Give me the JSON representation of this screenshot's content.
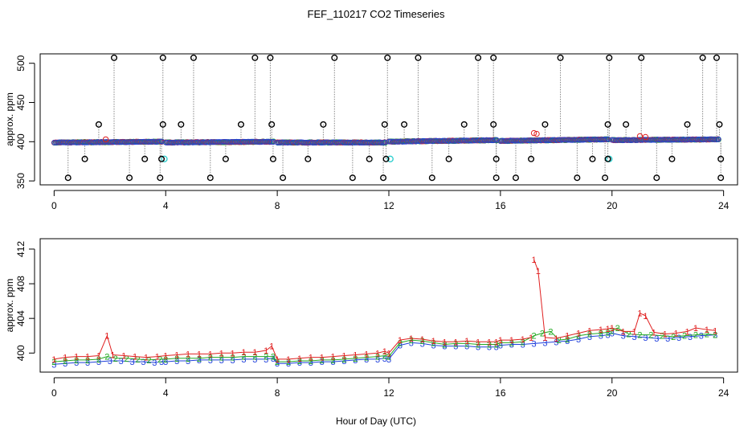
{
  "chart_data": [
    {
      "type": "scatter",
      "title": "FEF_110217  CO2 Timeseries",
      "ylabel": "approx. ppm",
      "xlabel": "",
      "xlim": [
        -0.5,
        24.5
      ],
      "ylim": [
        345,
        512
      ],
      "x_ticks": [
        0,
        4,
        8,
        12,
        16,
        20,
        24
      ],
      "y_ticks": [
        350,
        400,
        450,
        500
      ],
      "grid": false,
      "colors": {
        "ch1": "#e02020",
        "ch2": "#22aa22",
        "ch3": "#1f3fdc",
        "ref": "#30d0d0",
        "spike": "#000000",
        "connector": "#888888"
      },
      "spikes_high": [
        2.15,
        3.9,
        5.0,
        7.2,
        7.75,
        10.05,
        11.95,
        13.05,
        15.2,
        15.75,
        18.15,
        19.9,
        21.05,
        23.25,
        23.75
      ],
      "spikes_low": [
        0.5,
        2.7,
        3.8,
        5.6,
        8.2,
        10.7,
        11.8,
        13.55,
        15.85,
        16.55,
        18.75,
        19.75,
        21.6,
        23.9
      ],
      "spikes_mid_422": [
        1.6,
        3.9,
        4.55,
        6.7,
        7.8,
        9.65,
        11.85,
        12.55,
        14.7,
        15.75,
        17.6,
        19.85,
        20.5,
        22.7,
        23.85
      ],
      "spikes_mid_378": [
        1.1,
        3.25,
        3.85,
        6.15,
        7.85,
        9.1,
        11.3,
        11.9,
        14.15,
        15.85,
        17.1,
        19.3,
        19.85,
        22.15,
        23.9
      ],
      "ref_points": [
        {
          "x": 3.95,
          "y": 378
        },
        {
          "x": 12.05,
          "y": 378
        },
        {
          "x": 19.9,
          "y": 378
        }
      ],
      "main_segments": [
        {
          "x0": 0.0,
          "x1": 3.85,
          "y0": 399,
          "y1": 400
        },
        {
          "x0": 4.0,
          "x1": 7.85,
          "y0": 399,
          "y1": 400
        },
        {
          "x0": 8.0,
          "x1": 11.85,
          "y0": 399,
          "y1": 399
        },
        {
          "x0": 12.0,
          "x1": 15.85,
          "y0": 400,
          "y1": 402
        },
        {
          "x0": 16.0,
          "x1": 19.85,
          "y0": 401,
          "y1": 403
        },
        {
          "x0": 20.0,
          "x1": 23.8,
          "y0": 402,
          "y1": 403
        }
      ],
      "red_outliers": [
        {
          "x": 17.2,
          "y": 411
        },
        {
          "x": 17.3,
          "y": 410
        },
        {
          "x": 21.0,
          "y": 407
        },
        {
          "x": 21.2,
          "y": 406
        },
        {
          "x": 1.85,
          "y": 403
        }
      ]
    },
    {
      "type": "line",
      "title": "",
      "xlabel": "Hour of Day (UTC)",
      "ylabel": "approx. ppm",
      "xlim": [
        -0.5,
        24.5
      ],
      "ylim": [
        397.8,
        413.2
      ],
      "x_ticks": [
        0,
        4,
        8,
        12,
        16,
        20,
        24
      ],
      "y_ticks": [
        400,
        404,
        408,
        412
      ],
      "grid": false,
      "series": [
        {
          "name": "1",
          "color": "#e02020",
          "x": [
            0.0,
            0.4,
            0.8,
            1.2,
            1.6,
            1.9,
            2.1,
            2.5,
            2.9,
            3.3,
            3.7,
            4.0,
            4.4,
            4.8,
            5.2,
            5.6,
            6.0,
            6.4,
            6.8,
            7.2,
            7.6,
            7.8,
            8.0,
            8.4,
            8.8,
            9.2,
            9.6,
            10.0,
            10.4,
            10.8,
            11.2,
            11.6,
            11.85,
            12.0,
            12.4,
            12.8,
            13.2,
            13.6,
            14.0,
            14.4,
            14.8,
            15.2,
            15.6,
            15.85,
            16.0,
            16.4,
            16.8,
            17.1,
            17.2,
            17.35,
            17.6,
            18.0,
            18.4,
            18.8,
            19.2,
            19.6,
            19.85,
            20.0,
            20.4,
            20.8,
            21.0,
            21.2,
            21.5,
            21.9,
            22.3,
            22.7,
            23.0,
            23.4,
            23.7
          ],
          "y": [
            399.3,
            399.5,
            399.6,
            399.6,
            399.7,
            402.0,
            399.8,
            399.7,
            399.6,
            399.5,
            399.6,
            399.7,
            399.8,
            399.9,
            399.9,
            399.9,
            400.0,
            400.0,
            400.1,
            400.1,
            400.3,
            400.8,
            399.3,
            399.3,
            399.4,
            399.5,
            399.5,
            399.6,
            399.7,
            399.8,
            399.9,
            400.0,
            400.2,
            400.0,
            401.5,
            401.7,
            401.6,
            401.4,
            401.3,
            401.3,
            401.4,
            401.3,
            401.3,
            401.3,
            401.5,
            401.5,
            401.6,
            401.8,
            410.8,
            409.5,
            401.8,
            401.7,
            402.0,
            402.3,
            402.6,
            402.7,
            402.8,
            402.9,
            402.5,
            402.5,
            404.6,
            404.3,
            402.4,
            402.2,
            402.3,
            402.5,
            402.9,
            402.7,
            402.6
          ]
        },
        {
          "name": "2",
          "color": "#22aa22",
          "x": [
            0.0,
            0.4,
            0.8,
            1.2,
            1.6,
            1.9,
            2.2,
            2.6,
            3.0,
            3.4,
            3.8,
            4.0,
            4.4,
            4.8,
            5.2,
            5.6,
            6.0,
            6.4,
            6.8,
            7.2,
            7.6,
            7.85,
            8.0,
            8.4,
            8.8,
            9.2,
            9.6,
            10.0,
            10.4,
            10.8,
            11.2,
            11.6,
            11.85,
            12.0,
            12.4,
            12.8,
            13.2,
            13.6,
            14.0,
            14.4,
            14.8,
            15.2,
            15.6,
            15.85,
            16.0,
            16.4,
            16.8,
            17.2,
            17.5,
            17.8,
            18.1,
            18.4,
            18.8,
            19.2,
            19.6,
            19.85,
            20.0,
            20.2,
            20.6,
            21.0,
            21.4,
            21.8,
            22.2,
            22.6,
            23.0,
            23.4,
            23.7
          ],
          "y": [
            399.0,
            399.1,
            399.2,
            399.2,
            399.3,
            399.6,
            399.4,
            399.4,
            399.3,
            399.2,
            399.3,
            399.3,
            399.4,
            399.4,
            399.4,
            399.5,
            399.5,
            399.5,
            399.6,
            399.6,
            399.6,
            399.6,
            399.0,
            399.0,
            399.1,
            399.1,
            399.2,
            399.2,
            399.3,
            399.4,
            399.5,
            399.6,
            399.7,
            399.6,
            401.2,
            401.5,
            401.4,
            401.2,
            401.0,
            401.1,
            401.1,
            401.0,
            401.0,
            401.0,
            401.2,
            401.2,
            401.3,
            402.0,
            402.3,
            402.5,
            401.5,
            401.6,
            402.0,
            402.2,
            402.3,
            402.4,
            402.6,
            402.9,
            402.2,
            402.1,
            402.1,
            402.0,
            401.9,
            402.0,
            402.1,
            402.2,
            402.1
          ]
        },
        {
          "name": "3",
          "color": "#1f3fdc",
          "x": [
            0.0,
            0.4,
            0.8,
            1.2,
            1.6,
            2.0,
            2.4,
            2.8,
            3.2,
            3.6,
            3.85,
            4.0,
            4.4,
            4.8,
            5.2,
            5.6,
            6.0,
            6.4,
            6.8,
            7.2,
            7.6,
            7.85,
            8.0,
            8.4,
            8.8,
            9.2,
            9.6,
            10.0,
            10.4,
            10.8,
            11.2,
            11.6,
            11.85,
            12.0,
            12.4,
            12.8,
            13.2,
            13.6,
            14.0,
            14.4,
            14.8,
            15.2,
            15.6,
            15.85,
            16.0,
            16.4,
            16.8,
            17.2,
            17.6,
            18.0,
            18.4,
            18.8,
            19.2,
            19.6,
            19.85,
            20.0,
            20.4,
            20.8,
            21.2,
            21.6,
            22.0,
            22.4,
            22.8,
            23.2,
            23.7
          ],
          "y": [
            398.7,
            398.8,
            398.9,
            398.9,
            399.0,
            399.1,
            399.1,
            399.0,
            399.0,
            398.9,
            399.0,
            399.0,
            399.1,
            399.1,
            399.2,
            399.2,
            399.2,
            399.2,
            399.3,
            399.3,
            399.3,
            399.4,
            398.8,
            398.8,
            398.9,
            398.9,
            399.0,
            399.0,
            399.1,
            399.2,
            399.3,
            399.3,
            399.4,
            399.3,
            400.9,
            401.2,
            401.1,
            400.9,
            400.8,
            400.8,
            400.8,
            400.7,
            400.7,
            400.7,
            400.9,
            401.0,
            401.0,
            401.1,
            401.2,
            401.3,
            401.4,
            401.6,
            401.9,
            402.0,
            402.1,
            402.3,
            402.0,
            401.9,
            401.8,
            401.7,
            401.7,
            401.8,
            401.9,
            402.0,
            402.1
          ]
        }
      ]
    }
  ]
}
